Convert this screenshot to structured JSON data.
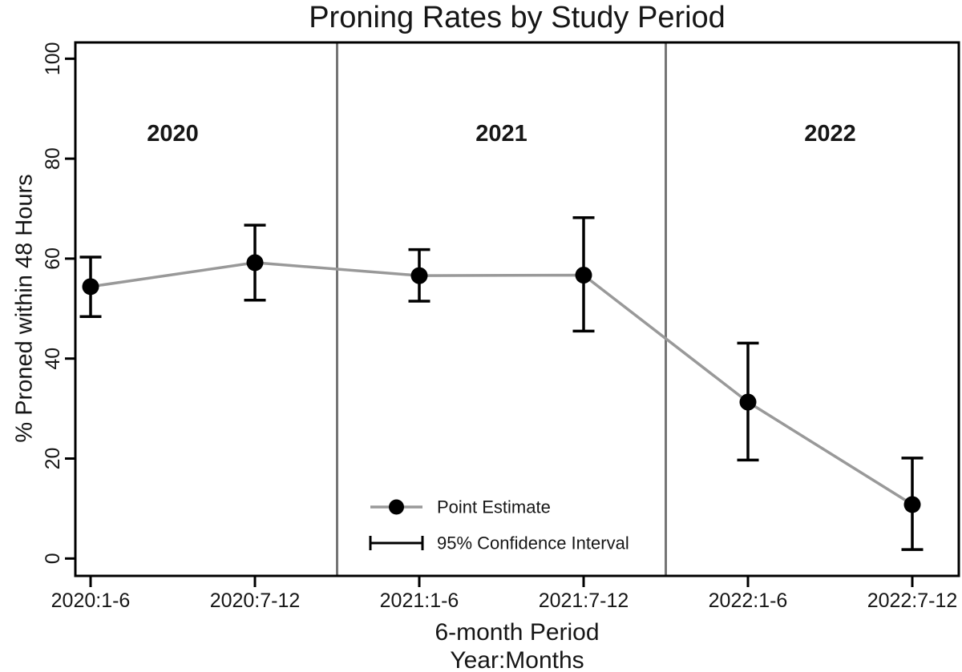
{
  "chart_data": {
    "type": "line",
    "title": "Proning Rates by Study Period",
    "ylabel": "% Proned within 48 Hours",
    "xlabel": "6-month Period",
    "xlabel_line2": "Year:Months",
    "categories": [
      "2020:1-6",
      "2020:7-12",
      "2021:1-6",
      "2021:7-12",
      "2022:1-6",
      "2022:7-12"
    ],
    "series": [
      {
        "name": "Point Estimate",
        "values": [
          54.4,
          59.2,
          56.6,
          56.7,
          31.3,
          10.8
        ]
      }
    ],
    "ci_lower": [
      48.4,
      51.7,
      51.5,
      45.5,
      19.7,
      1.8
    ],
    "ci_upper": [
      60.3,
      66.7,
      61.8,
      68.2,
      43.1,
      20.1
    ],
    "ylim": [
      0,
      100
    ],
    "yticks": [
      0,
      20,
      40,
      60,
      80,
      100
    ],
    "grid": false,
    "year_annotations": [
      "2020",
      "2021",
      "2022"
    ],
    "legend": {
      "position": "inside-bottom-center",
      "items": [
        {
          "symbol": "line-with-dot",
          "label": "Point Estimate"
        },
        {
          "symbol": "error-bar",
          "label": "95% Confidence Interval"
        }
      ]
    },
    "colors": {
      "trend_line": "#999999",
      "marker": "#000000",
      "error_bar": "#000000",
      "divider_line": "#757575",
      "axis": "#000000",
      "text": "#161616"
    }
  }
}
